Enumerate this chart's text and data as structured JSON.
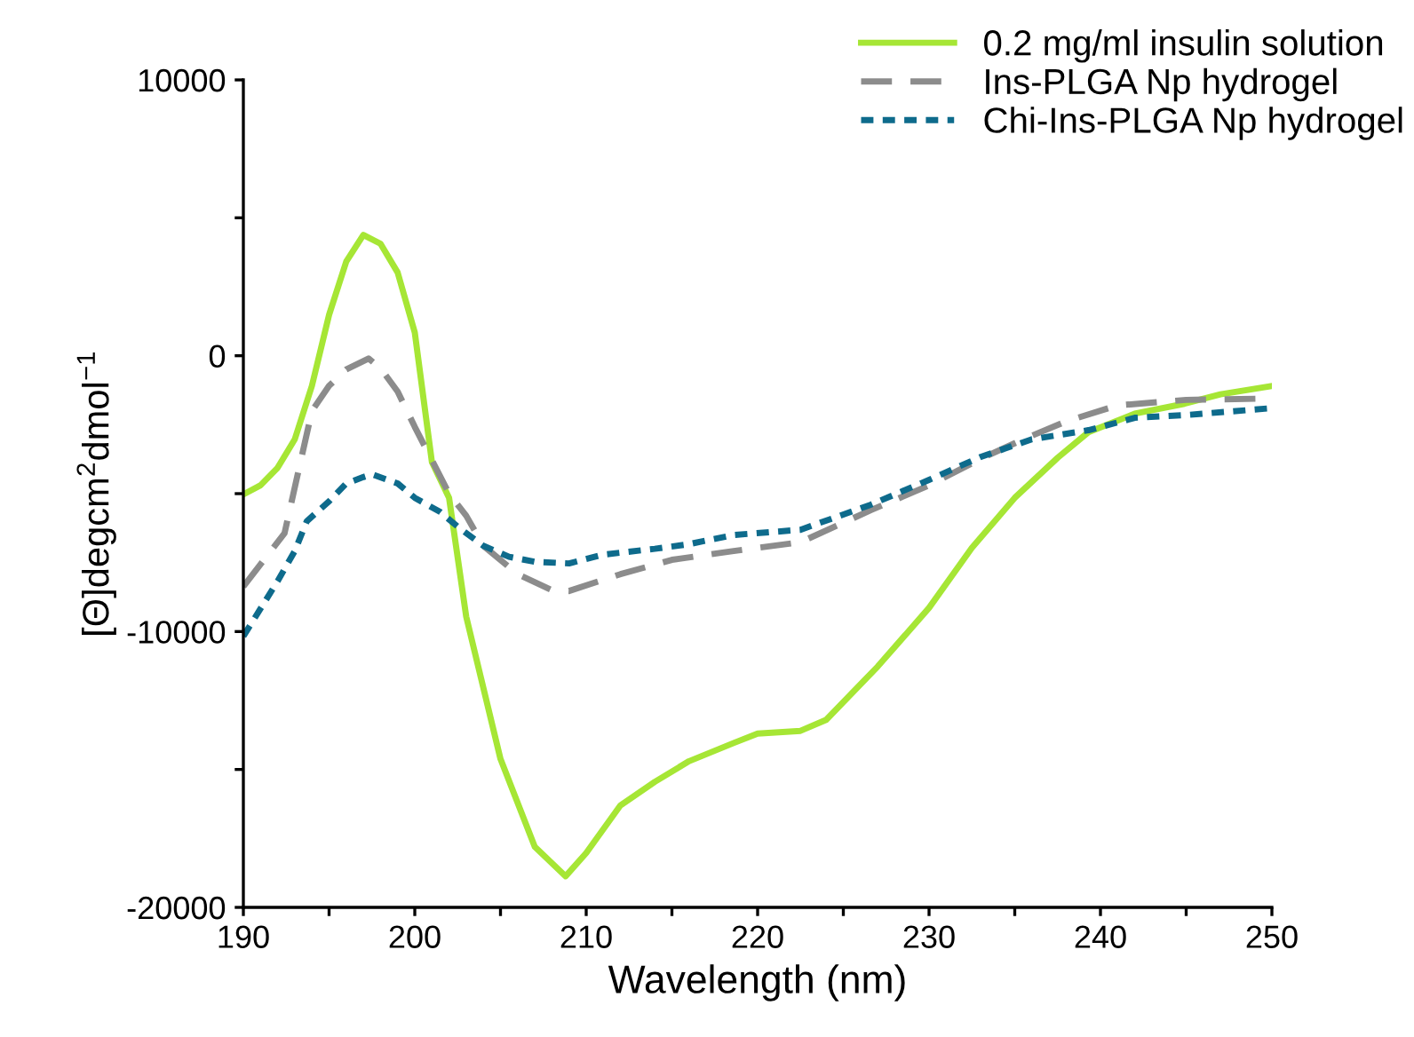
{
  "chart_data": {
    "type": "line",
    "xlabel": "Wavelength (nm)",
    "ylabel": "[Θ]degcm$^{2}$dmol$^{−1}$",
    "xlim": [
      190,
      250
    ],
    "xticks": [
      190,
      {
        "value": 195,
        "label": null
      },
      200,
      {
        "value": 205,
        "label": null
      },
      210,
      {
        "value": 215,
        "label": null
      },
      220,
      {
        "value": 225,
        "label": null
      },
      230,
      {
        "value": 235,
        "label": null
      },
      240,
      {
        "value": 245,
        "label": null
      },
      250
    ],
    "ylim": [
      -20000,
      10000
    ],
    "yticks": [
      -20000,
      {
        "value": -15000,
        "label": null
      },
      -10000,
      {
        "value": -5000,
        "label": null
      },
      0,
      {
        "value": 5000,
        "label": null
      },
      10000
    ],
    "grid": false,
    "legend": "top right",
    "marker": "none",
    "series": [
      {
        "name": "0.2 mg/ml insulin solution",
        "color": "#a6e635",
        "line_style": "solid",
        "x": [
          190,
          191,
          192,
          193,
          194,
          195,
          196,
          197,
          198,
          199,
          200,
          201,
          202,
          203,
          205,
          207,
          208.8,
          210,
          212,
          214,
          216,
          218.6,
          220,
          222.5,
          224,
          227,
          230,
          232.5,
          235,
          237.5,
          239.3,
          242,
          244.9,
          247,
          250
        ],
        "values": [
          -5030,
          -4700,
          -4060,
          -3030,
          -1090,
          1480,
          3410,
          4380,
          4060,
          3020,
          840,
          -3860,
          -5150,
          -9460,
          -14620,
          -17800,
          -18870,
          -18030,
          -16300,
          -15450,
          -14700,
          -14040,
          -13700,
          -13600,
          -13200,
          -11270,
          -9140,
          -6960,
          -5150,
          -3700,
          -2770,
          -2100,
          -1740,
          -1400,
          -1100
        ]
      },
      {
        "name": "Ins-PLGA Np hydrogel",
        "color": "#8c8c8c",
        "line_style": "dashed",
        "x": [
          190,
          192.4,
          194,
          195,
          196,
          197.3,
          198,
          199,
          200,
          202,
          203,
          204,
          206,
          208,
          209,
          212,
          215,
          218.6,
          222.5,
          226.6,
          230,
          233,
          235.5,
          238,
          241,
          245,
          250
        ],
        "values": [
          -8370,
          -6440,
          -2000,
          -1090,
          -500,
          -100,
          -450,
          -1300,
          -2580,
          -5000,
          -5800,
          -6890,
          -7920,
          -8500,
          -8530,
          -7920,
          -7400,
          -7080,
          -6760,
          -5600,
          -4700,
          -3740,
          -3030,
          -2380,
          -1800,
          -1600,
          -1550
        ]
      },
      {
        "name": "Chi-Ins-PLGA Np hydrogel",
        "color": "#0e6b8c",
        "line_style": "dotted",
        "x": [
          190,
          192,
          193,
          193.7,
          195,
          196,
          197,
          197.5,
          199,
          200,
          201.5,
          202.6,
          204,
          205.5,
          207,
          209,
          211,
          214,
          216,
          218.6,
          222.5,
          226.6,
          230,
          233,
          236,
          239.3,
          242,
          245,
          250
        ],
        "values": [
          -10170,
          -8170,
          -7080,
          -6000,
          -5280,
          -4630,
          -4400,
          -4300,
          -4630,
          -5150,
          -5670,
          -6250,
          -6890,
          -7290,
          -7470,
          -7530,
          -7210,
          -7000,
          -6830,
          -6500,
          -6310,
          -5400,
          -4500,
          -3670,
          -3030,
          -2700,
          -2250,
          -2150,
          -1900
        ]
      }
    ]
  }
}
